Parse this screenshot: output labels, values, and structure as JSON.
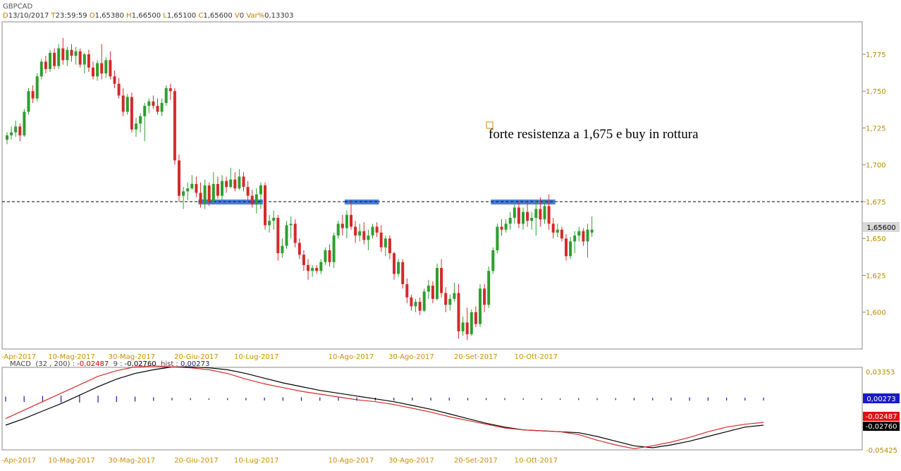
{
  "header": {
    "symbol": "GBPCAD",
    "d_label": "D",
    "date": "13/10/2017",
    "t_label": "T",
    "time": "23:59:59",
    "o_label": "O",
    "open": "1,65380",
    "h_label": "H",
    "high": "1,66500",
    "l_label": "L",
    "low": "1,65100",
    "c_label": "C",
    "close": "1,65600",
    "v_label": "V",
    "volume": "0",
    "var_label": "Var%",
    "var": "0,13303"
  },
  "annotation": "forte resistenza a 1,675 e buy in rottura",
  "last_price_label": "1,65600",
  "macd_header": {
    "name": "MACD",
    "params": "(32 , 200) :",
    "macd_value": "-0,02487",
    "signal_label": "9 :",
    "signal_value": "-0,02760",
    "hist_label": "hist :",
    "hist_value": "0,00273"
  },
  "macd_badges": {
    "hist": "0,00273",
    "macd": "-0,02487",
    "signal": "-0,02760"
  },
  "colors": {
    "up": "#2e9e2e",
    "down": "#d42a2a",
    "resistance": "#3a6fd8",
    "macd": "#d42a2a",
    "signal": "#000000",
    "hist": "#1a1aa0",
    "axis_text": "#d08a00"
  },
  "chart_data": [
    {
      "type": "candlestick",
      "title": "GBPCAD",
      "ylim": [
        1.575,
        1.797
      ],
      "yticks": [
        "1,775",
        "1,750",
        "1,725",
        "1,700",
        "1,675",
        "1,650",
        "1,625",
        "1,600"
      ],
      "ytick_values": [
        1.775,
        1.75,
        1.725,
        1.7,
        1.675,
        1.65,
        1.625,
        1.6
      ],
      "xtick_labels": [
        "-Apr-2017",
        "10-Mag-2017",
        "30-Mag-2017",
        "20-Giu-2017",
        "10-Lug-2017",
        "10-Ago-2017",
        "30-Ago-2017",
        "20-Set-2017",
        "10-Ott-2017"
      ],
      "xtick_index": [
        0,
        15,
        29,
        44,
        58,
        80,
        94,
        109,
        123
      ],
      "resistance_level": 1.675,
      "resistance_zones": [
        [
          45,
          59
        ],
        [
          79,
          86
        ],
        [
          113,
          127
        ]
      ],
      "ohlc": [
        [
          1.717,
          1.722,
          1.714,
          1.72
        ],
        [
          1.72,
          1.726,
          1.717,
          1.722
        ],
        [
          1.722,
          1.73,
          1.719,
          1.726
        ],
        [
          1.726,
          1.728,
          1.716,
          1.72
        ],
        [
          1.72,
          1.738,
          1.719,
          1.736
        ],
        [
          1.736,
          1.752,
          1.734,
          1.75
        ],
        [
          1.75,
          1.754,
          1.742,
          1.745
        ],
        [
          1.745,
          1.762,
          1.743,
          1.76
        ],
        [
          1.76,
          1.772,
          1.758,
          1.77
        ],
        [
          1.77,
          1.774,
          1.762,
          1.765
        ],
        [
          1.765,
          1.778,
          1.763,
          1.776
        ],
        [
          1.776,
          1.779,
          1.765,
          1.767
        ],
        [
          1.767,
          1.782,
          1.765,
          1.779
        ],
        [
          1.779,
          1.786,
          1.768,
          1.771
        ],
        [
          1.771,
          1.78,
          1.767,
          1.778
        ],
        [
          1.778,
          1.782,
          1.77,
          1.774
        ],
        [
          1.774,
          1.78,
          1.768,
          1.777
        ],
        [
          1.777,
          1.779,
          1.766,
          1.768
        ],
        [
          1.768,
          1.776,
          1.762,
          1.775
        ],
        [
          1.775,
          1.778,
          1.763,
          1.766
        ],
        [
          1.766,
          1.77,
          1.758,
          1.76
        ],
        [
          1.76,
          1.771,
          1.757,
          1.769
        ],
        [
          1.769,
          1.782,
          1.758,
          1.762
        ],
        [
          1.762,
          1.773,
          1.759,
          1.771
        ],
        [
          1.771,
          1.777,
          1.758,
          1.76
        ],
        [
          1.76,
          1.764,
          1.752,
          1.755
        ],
        [
          1.755,
          1.759,
          1.745,
          1.747
        ],
        [
          1.747,
          1.752,
          1.733,
          1.736
        ],
        [
          1.736,
          1.748,
          1.734,
          1.746
        ],
        [
          1.746,
          1.749,
          1.722,
          1.724
        ],
        [
          1.724,
          1.732,
          1.719,
          1.728
        ],
        [
          1.728,
          1.735,
          1.722,
          1.733
        ],
        [
          1.733,
          1.742,
          1.716,
          1.74
        ],
        [
          1.74,
          1.745,
          1.735,
          1.743
        ],
        [
          1.743,
          1.747,
          1.738,
          1.74
        ],
        [
          1.74,
          1.745,
          1.734,
          1.736
        ],
        [
          1.736,
          1.745,
          1.733,
          1.742
        ],
        [
          1.742,
          1.754,
          1.74,
          1.752
        ],
        [
          1.752,
          1.755,
          1.744,
          1.75
        ],
        [
          1.75,
          1.752,
          1.7,
          1.703
        ],
        [
          1.703,
          1.707,
          1.675,
          1.679
        ],
        [
          1.679,
          1.685,
          1.67,
          1.682
        ],
        [
          1.682,
          1.688,
          1.676,
          1.684
        ],
        [
          1.684,
          1.693,
          1.683,
          1.687
        ],
        [
          1.687,
          1.692,
          1.678,
          1.681
        ],
        [
          1.681,
          1.688,
          1.671,
          1.674
        ],
        [
          1.674,
          1.69,
          1.67,
          1.686
        ],
        [
          1.686,
          1.688,
          1.672,
          1.675
        ],
        [
          1.675,
          1.695,
          1.673,
          1.687
        ],
        [
          1.687,
          1.692,
          1.677,
          1.679
        ],
        [
          1.679,
          1.693,
          1.676,
          1.689
        ],
        [
          1.689,
          1.692,
          1.681,
          1.685
        ],
        [
          1.685,
          1.698,
          1.684,
          1.69
        ],
        [
          1.69,
          1.695,
          1.682,
          1.684
        ],
        [
          1.684,
          1.697,
          1.683,
          1.692
        ],
        [
          1.692,
          1.695,
          1.682,
          1.685
        ],
        [
          1.685,
          1.689,
          1.676,
          1.679
        ],
        [
          1.679,
          1.683,
          1.671,
          1.673
        ],
        [
          1.673,
          1.684,
          1.667,
          1.68
        ],
        [
          1.68,
          1.688,
          1.67,
          1.686
        ],
        [
          1.686,
          1.688,
          1.656,
          1.659
        ],
        [
          1.659,
          1.666,
          1.654,
          1.662
        ],
        [
          1.662,
          1.669,
          1.656,
          1.664
        ],
        [
          1.664,
          1.666,
          1.635,
          1.64
        ],
        [
          1.64,
          1.65,
          1.637,
          1.645
        ],
        [
          1.645,
          1.662,
          1.643,
          1.659
        ],
        [
          1.659,
          1.665,
          1.65,
          1.66
        ],
        [
          1.66,
          1.663,
          1.644,
          1.647
        ],
        [
          1.647,
          1.65,
          1.636,
          1.639
        ],
        [
          1.639,
          1.642,
          1.628,
          1.632
        ],
        [
          1.632,
          1.636,
          1.622,
          1.628
        ],
        [
          1.628,
          1.632,
          1.624,
          1.63
        ],
        [
          1.63,
          1.632,
          1.626,
          1.628
        ],
        [
          1.628,
          1.636,
          1.626,
          1.634
        ],
        [
          1.634,
          1.644,
          1.632,
          1.642
        ],
        [
          1.642,
          1.646,
          1.631,
          1.634
        ],
        [
          1.634,
          1.654,
          1.63,
          1.652
        ],
        [
          1.652,
          1.662,
          1.65,
          1.66
        ],
        [
          1.66,
          1.666,
          1.652,
          1.657
        ],
        [
          1.657,
          1.669,
          1.65,
          1.666
        ],
        [
          1.666,
          1.676,
          1.656,
          1.658
        ],
        [
          1.658,
          1.662,
          1.647,
          1.652
        ],
        [
          1.652,
          1.66,
          1.648,
          1.655
        ],
        [
          1.655,
          1.661,
          1.646,
          1.649
        ],
        [
          1.649,
          1.656,
          1.642,
          1.652
        ],
        [
          1.652,
          1.66,
          1.65,
          1.658
        ],
        [
          1.658,
          1.661,
          1.651,
          1.654
        ],
        [
          1.654,
          1.659,
          1.641,
          1.644
        ],
        [
          1.644,
          1.652,
          1.638,
          1.65
        ],
        [
          1.65,
          1.652,
          1.636,
          1.64
        ],
        [
          1.64,
          1.641,
          1.622,
          1.626
        ],
        [
          1.626,
          1.636,
          1.624,
          1.634
        ],
        [
          1.634,
          1.636,
          1.616,
          1.619
        ],
        [
          1.619,
          1.623,
          1.606,
          1.61
        ],
        [
          1.61,
          1.612,
          1.601,
          1.604
        ],
        [
          1.604,
          1.609,
          1.6,
          1.607
        ],
        [
          1.607,
          1.61,
          1.598,
          1.601
        ],
        [
          1.601,
          1.616,
          1.6,
          1.614
        ],
        [
          1.614,
          1.622,
          1.609,
          1.618
        ],
        [
          1.618,
          1.621,
          1.606,
          1.609
        ],
        [
          1.609,
          1.633,
          1.608,
          1.63
        ],
        [
          1.63,
          1.636,
          1.61,
          1.613
        ],
        [
          1.613,
          1.617,
          1.6,
          1.605
        ],
        [
          1.605,
          1.612,
          1.601,
          1.609
        ],
        [
          1.609,
          1.62,
          1.607,
          1.613
        ],
        [
          1.613,
          1.619,
          1.582,
          1.587
        ],
        [
          1.587,
          1.597,
          1.584,
          1.593
        ],
        [
          1.593,
          1.603,
          1.581,
          1.585
        ],
        [
          1.585,
          1.602,
          1.584,
          1.6
        ],
        [
          1.6,
          1.604,
          1.59,
          1.592
        ],
        [
          1.592,
          1.619,
          1.59,
          1.616
        ],
        [
          1.616,
          1.619,
          1.6,
          1.605
        ],
        [
          1.605,
          1.631,
          1.603,
          1.628
        ],
        [
          1.628,
          1.644,
          1.626,
          1.642
        ],
        [
          1.642,
          1.66,
          1.64,
          1.658
        ],
        [
          1.658,
          1.663,
          1.652,
          1.656
        ],
        [
          1.656,
          1.663,
          1.654,
          1.66
        ],
        [
          1.66,
          1.668,
          1.656,
          1.664
        ],
        [
          1.664,
          1.673,
          1.66,
          1.671
        ],
        [
          1.671,
          1.675,
          1.657,
          1.66
        ],
        [
          1.66,
          1.671,
          1.656,
          1.668
        ],
        [
          1.668,
          1.676,
          1.658,
          1.662
        ],
        [
          1.662,
          1.668,
          1.656,
          1.664
        ],
        [
          1.664,
          1.676,
          1.652,
          1.67
        ],
        [
          1.67,
          1.678,
          1.658,
          1.663
        ],
        [
          1.663,
          1.676,
          1.66,
          1.672
        ],
        [
          1.672,
          1.68,
          1.656,
          1.66
        ],
        [
          1.66,
          1.664,
          1.65,
          1.654
        ],
        [
          1.654,
          1.66,
          1.651,
          1.656
        ],
        [
          1.656,
          1.658,
          1.648,
          1.65
        ],
        [
          1.65,
          1.653,
          1.635,
          1.638
        ],
        [
          1.638,
          1.651,
          1.636,
          1.648
        ],
        [
          1.648,
          1.655,
          1.64,
          1.652
        ],
        [
          1.652,
          1.658,
          1.648,
          1.655
        ],
        [
          1.655,
          1.657,
          1.645,
          1.648
        ],
        [
          1.648,
          1.66,
          1.637,
          1.656
        ],
        [
          1.654,
          1.665,
          1.651,
          1.656
        ]
      ]
    },
    {
      "type": "line",
      "title": "MACD (32 , 200)",
      "ylim": [
        -0.05425,
        0.03353
      ],
      "yticks": [
        "0,03353",
        "-0,05425"
      ],
      "xtick_labels": [
        "-Apr-2017",
        "10-Mag-2017",
        "30-Mag-2017",
        "20-Giu-2017",
        "10-Lug-2017",
        "10-Ago-2017",
        "30-Ago-2017",
        "20-Set-2017",
        "10-Ott-2017"
      ],
      "series": [
        {
          "name": "MACD",
          "values": [
            -0.021,
            -0.012,
            -0.003,
            0.006,
            0.015,
            0.024,
            0.03,
            0.034,
            0.035,
            0.034,
            0.033,
            0.031,
            0.027,
            0.021,
            0.016,
            0.012,
            0.008,
            0.005,
            0.002,
            -0.001,
            -0.003,
            -0.006,
            -0.01,
            -0.014,
            -0.019,
            -0.023,
            -0.027,
            -0.031,
            -0.033,
            -0.034,
            -0.035,
            -0.038,
            -0.044,
            -0.049,
            -0.053,
            -0.05,
            -0.046,
            -0.041,
            -0.035,
            -0.03,
            -0.027,
            -0.025
          ]
        },
        {
          "name": "Signal",
          "values": [
            -0.028,
            -0.021,
            -0.013,
            -0.005,
            0.004,
            0.013,
            0.021,
            0.027,
            0.031,
            0.034,
            0.034,
            0.033,
            0.031,
            0.027,
            0.022,
            0.017,
            0.013,
            0.009,
            0.006,
            0.003,
            0.0,
            -0.003,
            -0.007,
            -0.011,
            -0.016,
            -0.021,
            -0.026,
            -0.03,
            -0.033,
            -0.034,
            -0.035,
            -0.036,
            -0.04,
            -0.045,
            -0.05,
            -0.052,
            -0.049,
            -0.045,
            -0.04,
            -0.035,
            -0.03,
            -0.028
          ]
        },
        {
          "name": "hist",
          "values": [
            0.007,
            0.009,
            0.01,
            0.011,
            0.011,
            0.011,
            0.009,
            0.007,
            0.004,
            0.002,
            0.001,
            0.0,
            -0.001,
            -0.002,
            -0.003,
            -0.004,
            -0.004,
            -0.004,
            -0.004,
            -0.004,
            -0.003,
            -0.003,
            -0.003,
            -0.003,
            -0.003,
            -0.002,
            -0.001,
            -0.001,
            0.0,
            0.0,
            0.0,
            0.001,
            0.001,
            0.001,
            0.002,
            0.002,
            0.003,
            0.004,
            0.004,
            0.003,
            0.003,
            0.003
          ]
        }
      ]
    }
  ]
}
